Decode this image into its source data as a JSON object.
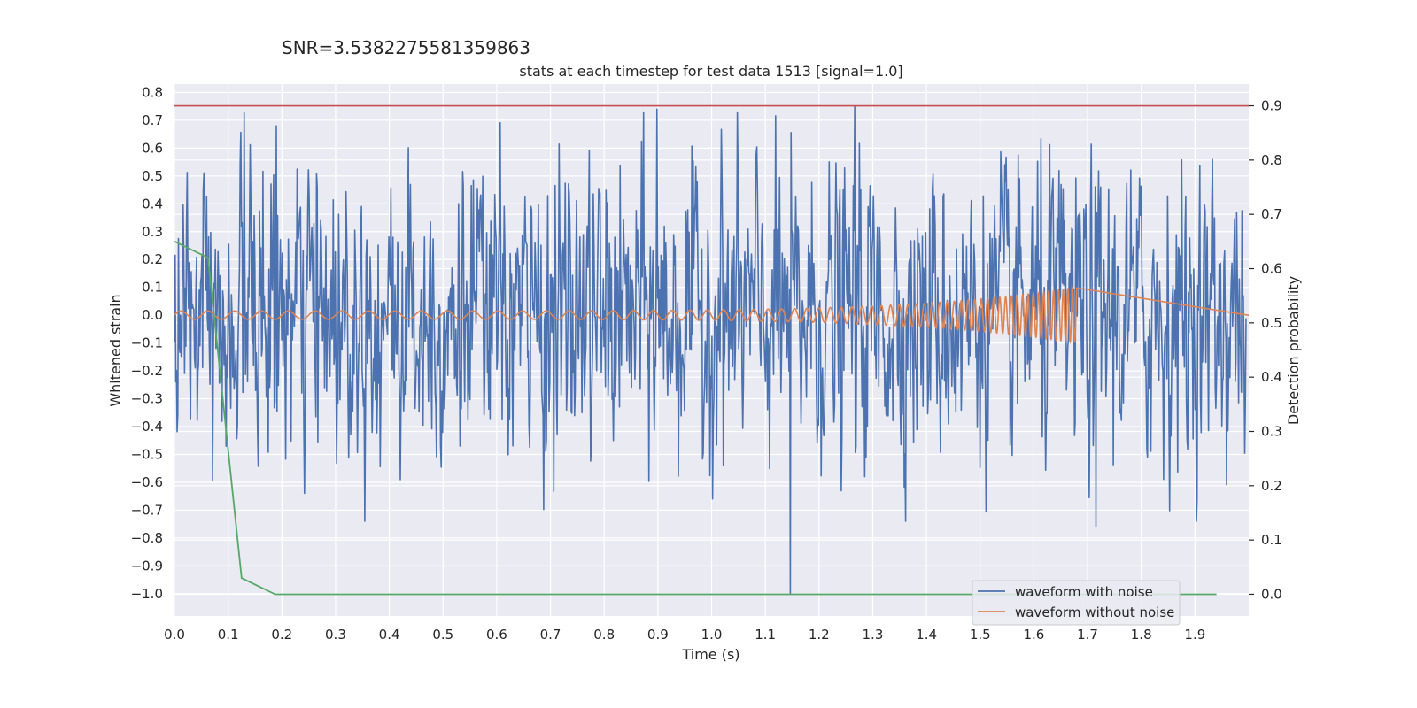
{
  "chart_data": {
    "type": "line",
    "suptitle": "SNR=3.5382275581359863",
    "title": "stats at each timestep for test data 1513 [signal=1.0]",
    "xlabel": "Time (s)",
    "ylabel": "Whitened strain",
    "ylabel_right": "Detection probability",
    "xlim": [
      0.0,
      2.0
    ],
    "ylim": [
      -1.08,
      0.83
    ],
    "ylim_right": [
      -0.04,
      0.94
    ],
    "x_ticks": [
      "0.0",
      "0.1",
      "0.2",
      "0.3",
      "0.4",
      "0.5",
      "0.6",
      "0.7",
      "0.8",
      "0.9",
      "1.0",
      "1.1",
      "1.2",
      "1.3",
      "1.4",
      "1.5",
      "1.6",
      "1.7",
      "1.8",
      "1.9"
    ],
    "y_ticks": [
      "0.8",
      "0.7",
      "0.6",
      "0.5",
      "0.4",
      "0.3",
      "0.2",
      "0.1",
      "0.0",
      "−0.1",
      "−0.2",
      "−0.3",
      "−0.4",
      "−0.5",
      "−0.6",
      "−0.7",
      "−0.8",
      "−0.9",
      "−1.0"
    ],
    "y_ticks_right": [
      "0.9",
      "0.8",
      "0.7",
      "0.6",
      "0.5",
      "0.4",
      "0.3",
      "0.2",
      "0.1",
      "0.0"
    ],
    "grid": true,
    "legend_position": "lower-right",
    "series": [
      {
        "name": "waveform with noise",
        "color": "#4c72b0",
        "axis": "left",
        "description_values": "dense noisy strain between about -0.76 and 0.75, dip to -1.0 at 1.15 s",
        "peaks": [
          [
            0.13,
            0.73
          ],
          [
            0.19,
            0.68
          ],
          [
            0.9,
            0.74
          ],
          [
            1.27,
            0.75
          ],
          [
            1.15,
            -1.0
          ],
          [
            1.72,
            -0.76
          ]
        ]
      },
      {
        "name": "waveform without noise",
        "color": "#dd8452",
        "axis": "left",
        "f_start": 20,
        "f_end": 120,
        "amp_start": 0.015,
        "amp_end": 0.1,
        "t_merge": 1.68,
        "t_end": 2.0
      },
      {
        "color": "#55a868",
        "axis": "right",
        "x": [
          0.0,
          0.0625,
          0.125,
          0.1875,
          1.94
        ],
        "y": [
          0.65,
          0.62,
          0.03,
          0.0,
          0.0
        ]
      },
      {
        "color": "#c44e52",
        "axis": "right",
        "type": "hline",
        "y": 0.9
      }
    ],
    "colors": {
      "background": "#eaeaf2",
      "grid": "#ffffff"
    }
  }
}
